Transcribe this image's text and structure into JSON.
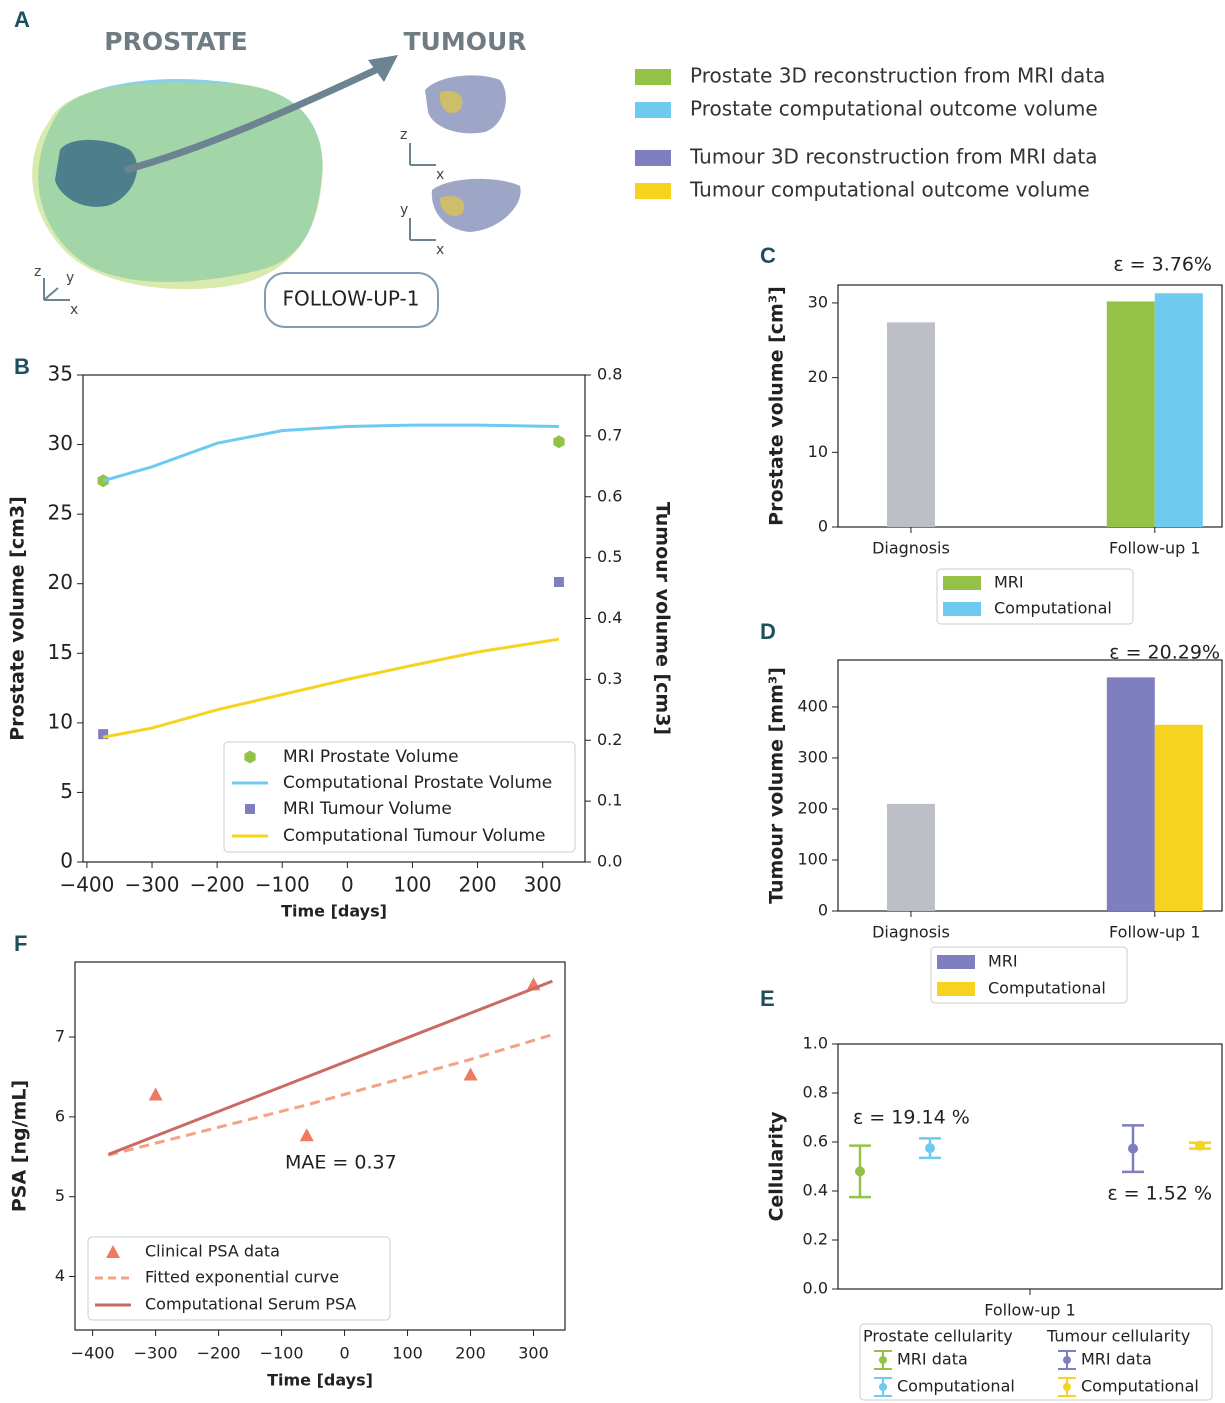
{
  "panel_a": {
    "letter": "A",
    "prostate_title": "PROSTATE",
    "tumour_title": "TUMOUR",
    "stage": "FOLLOW-UP-1",
    "axis_triads": [
      [
        "z",
        "y",
        "x"
      ],
      [
        "z",
        "x"
      ],
      [
        "y",
        "x"
      ]
    ],
    "legend": [
      {
        "label": "Prostate 3D reconstruction from MRI data",
        "color": "#93c247"
      },
      {
        "label": "Prostate computational outcome volume",
        "color": "#6ecbef"
      },
      {
        "label": "Tumour 3D reconstruction from MRI data",
        "color": "#7f7fc0"
      },
      {
        "label": "Tumour computational outcome volume",
        "color": "#f5d31f"
      }
    ]
  },
  "chart_data": [
    {
      "type": "line",
      "panel": "B",
      "xlabel": "Time [days]",
      "ylabel": "Prostate volume [cm3]",
      "y2label": "Tumour volume [cm3]",
      "xlim": [
        -406,
        365
      ],
      "xticks": [
        {
          "value": -400,
          "label": "−400"
        },
        {
          "value": -300,
          "label": "−300"
        },
        {
          "value": -200,
          "label": "−200"
        },
        {
          "value": -100,
          "label": "−100"
        },
        0,
        100,
        200,
        300
      ],
      "ylim": [
        0,
        35
      ],
      "yticks": [
        0,
        5,
        10,
        15,
        20,
        25,
        30,
        35
      ],
      "y2lim": [
        0,
        0.8
      ],
      "y2ticks": [
        {
          "value": 0,
          "label": "0.0"
        },
        0.1,
        0.2,
        0.3,
        0.4,
        0.5,
        0.6,
        0.7,
        0.8
      ],
      "legend": "lower right",
      "series": [
        {
          "name": "MRI Prostate Volume",
          "kind": "scatter",
          "marker": "hexagon",
          "color": "#93c247",
          "x": [
            -375,
            325
          ],
          "values": [
            27.4,
            30.2
          ]
        },
        {
          "name": "Computational Prostate Volume",
          "kind": "line",
          "color": "#6ecbef",
          "x": [
            -375,
            -300,
            -200,
            -100,
            0,
            100,
            200,
            325
          ],
          "values": [
            27.4,
            28.4,
            30.1,
            31.0,
            31.3,
            31.4,
            31.4,
            31.3
          ]
        },
        {
          "name": "MRI Tumour Volume",
          "kind": "scatter",
          "marker": "square",
          "axis": "y2",
          "color": "#7f7fc0",
          "x": [
            -375,
            325
          ],
          "values": [
            0.21,
            0.46
          ]
        },
        {
          "name": "Computational Tumour Volume",
          "kind": "line",
          "axis": "y2",
          "color": "#f5d31f",
          "x": [
            -375,
            -300,
            -200,
            -100,
            0,
            100,
            200,
            325
          ],
          "values": [
            0.205,
            0.22,
            0.25,
            0.275,
            0.3,
            0.323,
            0.345,
            0.366
          ]
        }
      ]
    },
    {
      "type": "bar",
      "panel": "C",
      "ylabel": "Prostate volume [cm³]",
      "annotations": [
        "ε = 3.76%"
      ],
      "categories": [
        "Diagnosis",
        "Follow-up 1"
      ],
      "ylim": [
        0,
        32.4
      ],
      "yticks": [
        0,
        10,
        20,
        30
      ],
      "legend": "lower center",
      "series": [
        {
          "color": "#bcc0c6",
          "values": [
            27.4,
            null
          ]
        },
        {
          "name": "MRI",
          "color": "#93c247",
          "values": [
            null,
            30.2
          ]
        },
        {
          "name": "Computational",
          "color": "#6ecbef",
          "values": [
            null,
            31.3
          ]
        }
      ]
    },
    {
      "type": "bar",
      "panel": "D",
      "ylabel": "Tumour volume [mm³]",
      "annotations": [
        "ε = 20.29%"
      ],
      "categories": [
        "Diagnosis",
        "Follow-up 1"
      ],
      "ylim": [
        0,
        492
      ],
      "yticks": [
        0,
        100,
        200,
        300,
        400
      ],
      "legend": "lower center",
      "series": [
        {
          "color": "#bcc0c6",
          "values": [
            210,
            null
          ]
        },
        {
          "name": "MRI",
          "color": "#7f7fc0",
          "values": [
            null,
            458
          ]
        },
        {
          "name": "Computational",
          "color": "#f5d31f",
          "values": [
            null,
            365
          ]
        }
      ]
    },
    {
      "type": "errorbar",
      "panel": "E",
      "ylabel": "Cellularity",
      "annotations": [
        "ε = 19.14 %",
        "ε = 1.52 %"
      ],
      "categories": [
        "Follow-up 1"
      ],
      "ylim": [
        0,
        1
      ],
      "yticks": [
        {
          "value": 0,
          "label": "0.0"
        },
        0.2,
        0.4,
        0.6,
        0.8,
        {
          "value": 1,
          "label": "1.0"
        }
      ],
      "legend": "lower center",
      "legend_titles": [
        "Prostate cellularity",
        "Tumour cellularity"
      ],
      "series": [
        {
          "name": "MRI data",
          "color": "#93c247",
          "values": [
            0.48
          ],
          "errors": [
            0.105
          ]
        },
        {
          "name": "Computational",
          "color": "#6ecbef",
          "values": [
            0.575
          ],
          "errors": [
            0.04
          ]
        },
        {
          "name": "MRI data",
          "color": "#7f7fc0",
          "values": [
            0.573
          ],
          "errors": [
            0.095
          ]
        },
        {
          "name": "Computational",
          "color": "#f5d31f",
          "values": [
            0.585
          ],
          "errors": [
            0.012
          ]
        }
      ]
    },
    {
      "type": "line",
      "panel": "F",
      "xlabel": "Time [days]",
      "ylabel": "PSA [ng/mL]",
      "annotations": [
        "MAE = 0.37"
      ],
      "xlim": [
        -428,
        350
      ],
      "xticks": [
        {
          "value": -400,
          "label": "−400"
        },
        {
          "value": -300,
          "label": "−300"
        },
        {
          "value": -200,
          "label": "−200"
        },
        {
          "value": -100,
          "label": "−100"
        },
        0,
        100,
        200,
        300
      ],
      "ylim": [
        3.33,
        7.94
      ],
      "yticks": [
        4,
        5,
        6,
        7
      ],
      "legend": "lower left",
      "series": [
        {
          "name": "Clinical PSA data",
          "kind": "scatter",
          "marker": "triangle",
          "color": "#ee7a62",
          "x": [
            -300,
            -60,
            200,
            300
          ],
          "values": [
            6.28,
            5.77,
            6.53,
            7.66
          ]
        },
        {
          "name": "Fitted exponential curve",
          "kind": "dashed",
          "color": "#f2a385",
          "x": [
            -375,
            -60,
            200,
            330
          ],
          "values": [
            5.52,
            6.15,
            6.72,
            7.03
          ]
        },
        {
          "name": "Computational Serum PSA",
          "kind": "line",
          "color": "#c96a64",
          "x": [
            -375,
            330
          ],
          "values": [
            5.53,
            7.7
          ]
        }
      ]
    }
  ]
}
